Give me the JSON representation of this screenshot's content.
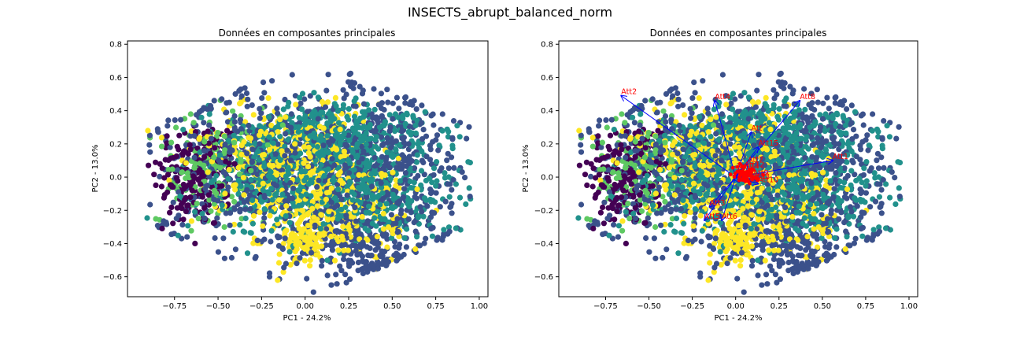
{
  "figure": {
    "title": "INSECTS_abrupt_balanced_norm"
  },
  "colors": {
    "classes": [
      "#440154",
      "#3b518b",
      "#21918c",
      "#5ec962",
      "#fde725"
    ],
    "arrow": "#0000ff",
    "arrow_label": "#ff0000"
  },
  "chart_data": [
    {
      "type": "scatter",
      "title": "Données en composantes principales",
      "xlabel": "PC1 - 24.2%",
      "ylabel": "PC2 - 13.0%",
      "xlim": [
        -1.02,
        1.05
      ],
      "ylim": [
        -0.72,
        0.82
      ],
      "xticks": [
        "−0.75",
        "−0.50",
        "−0.25",
        "0.00",
        "0.25",
        "0.50",
        "0.75",
        "1.00"
      ],
      "xtick_values": [
        -0.75,
        -0.5,
        -0.25,
        0.0,
        0.25,
        0.5,
        0.75,
        1.0
      ],
      "yticks": [
        "−0.6",
        "−0.4",
        "−0.2",
        "0.0",
        "0.2",
        "0.4",
        "0.6",
        "0.8"
      ],
      "ytick_values": [
        -0.6,
        -0.4,
        -0.2,
        0.0,
        0.2,
        0.4,
        0.6,
        0.8
      ],
      "grid": false,
      "classes": 5,
      "clusters": [
        {
          "class": 0,
          "cx": -0.62,
          "cy": 0.02,
          "sx": 0.13,
          "sy": 0.17,
          "n": 200
        },
        {
          "class": 3,
          "cx": -0.52,
          "cy": 0.08,
          "sx": 0.16,
          "sy": 0.16,
          "n": 140
        },
        {
          "class": 1,
          "cx": -0.15,
          "cy": 0.05,
          "sx": 0.38,
          "sy": 0.26,
          "n": 650
        },
        {
          "class": 1,
          "cx": 0.42,
          "cy": 0.05,
          "sx": 0.26,
          "sy": 0.24,
          "n": 450
        },
        {
          "class": 2,
          "cx": 0.2,
          "cy": 0.25,
          "sx": 0.26,
          "sy": 0.09,
          "n": 380
        },
        {
          "class": 2,
          "cx": 0.3,
          "cy": -0.08,
          "sx": 0.32,
          "sy": 0.14,
          "n": 420
        },
        {
          "class": 2,
          "cx": -0.18,
          "cy": 0.0,
          "sx": 0.24,
          "sy": 0.18,
          "n": 250
        },
        {
          "class": 4,
          "cx": -0.1,
          "cy": 0.15,
          "sx": 0.28,
          "sy": 0.14,
          "n": 320
        },
        {
          "class": 4,
          "cx": 0.1,
          "cy": -0.2,
          "sx": 0.22,
          "sy": 0.14,
          "n": 260
        },
        {
          "class": 4,
          "cx": 0.0,
          "cy": -0.4,
          "sx": 0.07,
          "sy": 0.06,
          "n": 90
        },
        {
          "class": 1,
          "cx": 0.35,
          "cy": -0.45,
          "sx": 0.18,
          "sy": 0.1,
          "n": 160
        }
      ]
    },
    {
      "type": "scatter",
      "title": "Données en composantes principales",
      "xlabel": "PC1 - 24.2%",
      "ylabel": "PC2 - 13.0%",
      "xlim": [
        -1.02,
        1.05
      ],
      "ylim": [
        -0.72,
        0.82
      ],
      "xticks": [
        "−0.75",
        "−0.50",
        "−0.25",
        "0.00",
        "0.25",
        "0.50",
        "0.75",
        "1.00"
      ],
      "xtick_values": [
        -0.75,
        -0.5,
        -0.25,
        0.0,
        0.25,
        0.5,
        0.75,
        1.0
      ],
      "yticks": [
        "−0.6",
        "−0.4",
        "−0.2",
        "0.0",
        "0.2",
        "0.4",
        "0.6",
        "0.8"
      ],
      "ytick_values": [
        -0.6,
        -0.4,
        -0.2,
        0.0,
        0.2,
        0.4,
        0.6,
        0.8
      ],
      "grid": false,
      "classes": 5,
      "clusters": "same_as_left",
      "loadings": [
        {
          "label": "Att2",
          "x": -0.66,
          "y": 0.49
        },
        {
          "label": "Att4",
          "x": -0.12,
          "y": 0.46
        },
        {
          "label": "Att8",
          "x": 0.37,
          "y": 0.46
        },
        {
          "label": "Att1",
          "x": 0.56,
          "y": 0.1
        },
        {
          "label": "Att15",
          "x": 0.13,
          "y": 0.18
        },
        {
          "label": "Att",
          "x": 0.09,
          "y": 0.27
        },
        {
          "label": "Att3",
          "x": -0.15,
          "y": -0.18
        },
        {
          "label": "Att5",
          "x": -0.18,
          "y": -0.26
        },
        {
          "label": "Att6",
          "x": -0.08,
          "y": -0.26
        },
        {
          "label": "Att7",
          "x": 0.07,
          "y": 0.08
        },
        {
          "label": "Att9",
          "x": 0.1,
          "y": 0.0
        },
        {
          "label": "Att10",
          "x": 0.13,
          "y": -0.04
        },
        {
          "label": "Att11",
          "x": 0.02,
          "y": -0.03
        },
        {
          "label": "Att12",
          "x": 0.05,
          "y": 0.05
        },
        {
          "label": "Att13",
          "x": 0.08,
          "y": -0.02
        },
        {
          "label": "Att14",
          "x": 0.02,
          "y": 0.04
        }
      ]
    }
  ]
}
